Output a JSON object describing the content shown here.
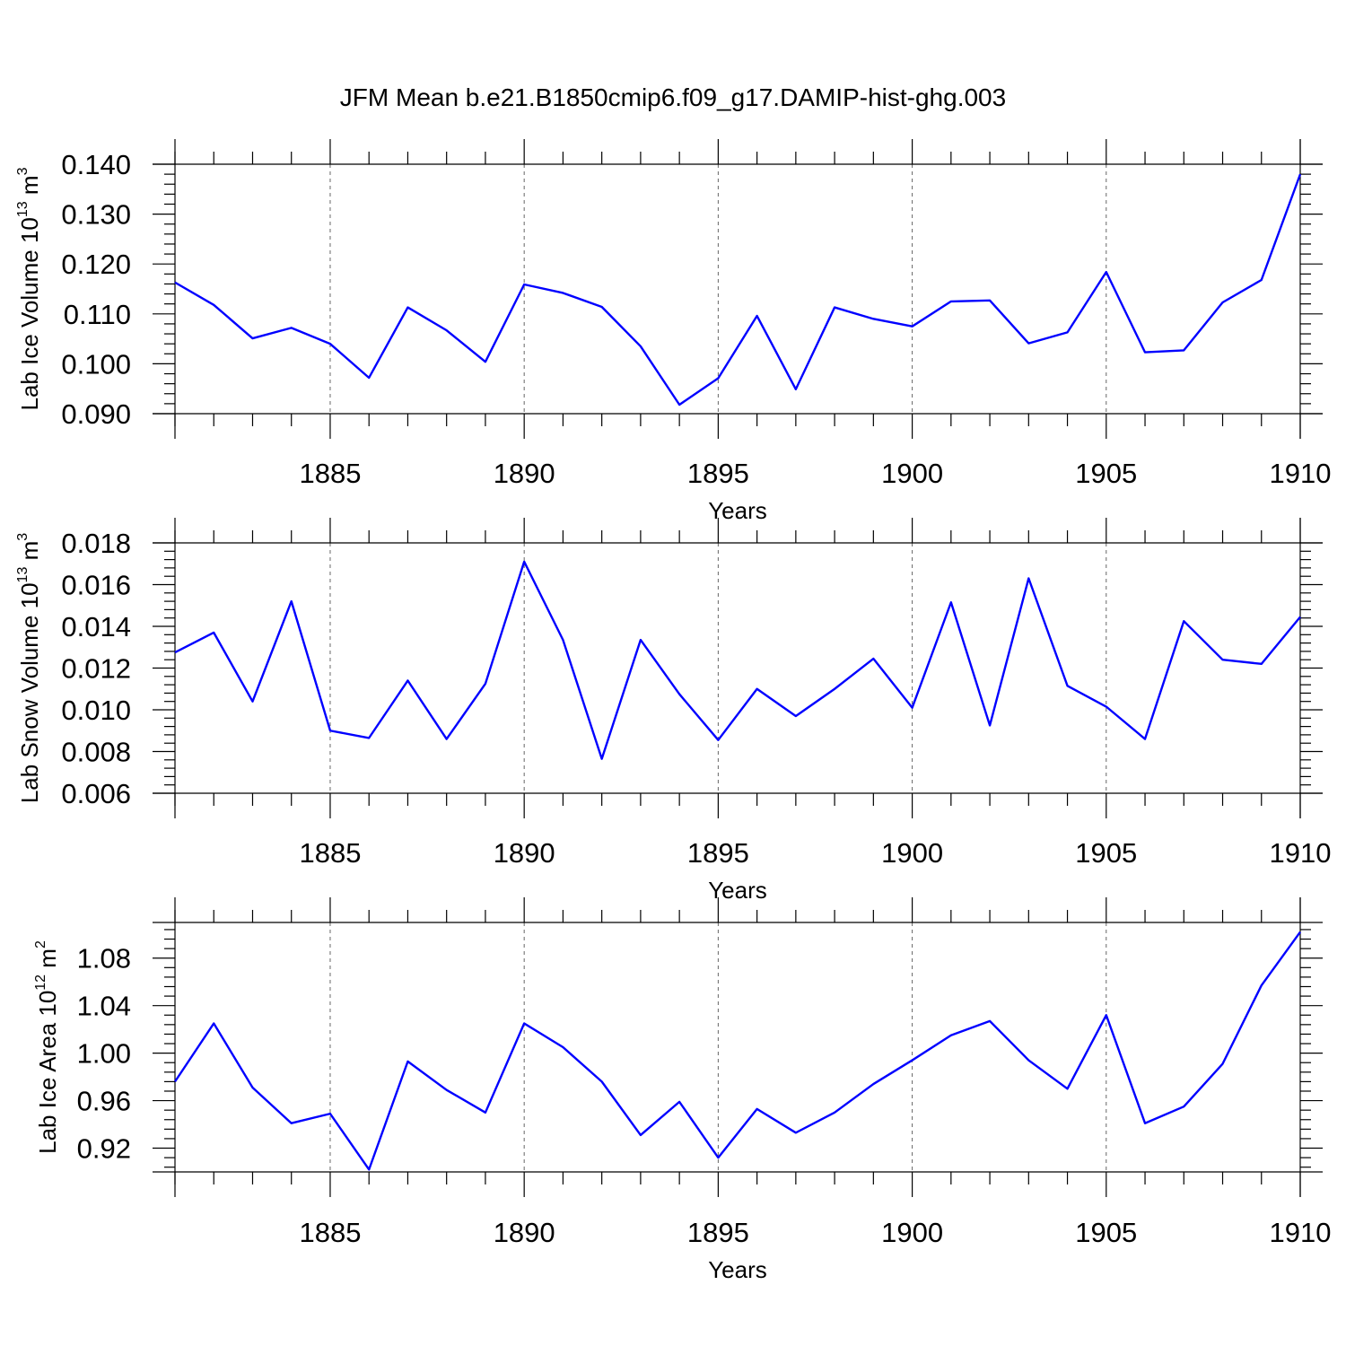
{
  "figure_title": "JFM Mean b.e21.B1850cmip6.f09_g17.DAMIP-hist-ghg.003",
  "chart_data": [
    {
      "type": "line",
      "title": "",
      "ylabel_main": "Lab Ice Volume 10",
      "ylabel_exp": "13",
      "ylabel_unit": " m",
      "ylabel_unit_exp": "3",
      "xlabel": "Years",
      "xlim": [
        1881,
        1910
      ],
      "ylim": [
        0.09,
        0.14
      ],
      "xticks": [
        1885,
        1890,
        1895,
        1900,
        1905,
        1910
      ],
      "xtick_labels": [
        "1885",
        "1890",
        "1895",
        "1900",
        "1905",
        "1910"
      ],
      "yticks": [
        0.09,
        0.1,
        0.11,
        0.12,
        0.13,
        0.14
      ],
      "ytick_labels": [
        "0.090",
        "0.100",
        "0.110",
        "0.120",
        "0.130",
        "0.140"
      ],
      "grid": "vertical dashed at major x ticks",
      "line_color": "#0000ff",
      "series": [
        {
          "name": "Lab Ice Volume",
          "x": [
            1881,
            1882,
            1883,
            1884,
            1885,
            1886,
            1887,
            1888,
            1889,
            1890,
            1891,
            1892,
            1893,
            1894,
            1895,
            1896,
            1897,
            1898,
            1899,
            1900,
            1901,
            1902,
            1903,
            1904,
            1905,
            1906,
            1907,
            1908,
            1909,
            1910
          ],
          "values": [
            0.1163,
            0.1118,
            0.1051,
            0.1072,
            0.104,
            0.0972,
            0.1113,
            0.1067,
            0.1004,
            0.1159,
            0.1142,
            0.1114,
            0.1035,
            0.0918,
            0.0971,
            0.1096,
            0.0949,
            0.1113,
            0.109,
            0.1075,
            0.1125,
            0.1127,
            0.1041,
            0.1063,
            0.1184,
            0.1023,
            0.1027,
            0.1123,
            0.1168,
            0.138
          ]
        }
      ]
    },
    {
      "type": "line",
      "title": "",
      "ylabel_main": "Lab Snow Volume 10",
      "ylabel_exp": "13",
      "ylabel_unit": " m",
      "ylabel_unit_exp": "3",
      "xlabel": "Years",
      "xlim": [
        1881,
        1910
      ],
      "ylim": [
        0.006,
        0.018
      ],
      "xticks": [
        1885,
        1890,
        1895,
        1900,
        1905,
        1910
      ],
      "xtick_labels": [
        "1885",
        "1890",
        "1895",
        "1900",
        "1905",
        "1910"
      ],
      "yticks": [
        0.006,
        0.008,
        0.01,
        0.012,
        0.014,
        0.016,
        0.018
      ],
      "ytick_labels": [
        "0.006",
        "0.008",
        "0.010",
        "0.012",
        "0.014",
        "0.016",
        "0.018"
      ],
      "grid": "vertical dashed at major x ticks",
      "line_color": "#0000ff",
      "series": [
        {
          "name": "Lab Snow Volume",
          "x": [
            1881,
            1882,
            1883,
            1884,
            1885,
            1886,
            1887,
            1888,
            1889,
            1890,
            1891,
            1892,
            1893,
            1894,
            1895,
            1896,
            1897,
            1898,
            1899,
            1900,
            1901,
            1902,
            1903,
            1904,
            1905,
            1906,
            1907,
            1908,
            1909,
            1910
          ],
          "values": [
            0.01275,
            0.0137,
            0.0104,
            0.0152,
            0.009,
            0.00865,
            0.0114,
            0.0086,
            0.01125,
            0.0171,
            0.01335,
            0.00765,
            0.01335,
            0.01075,
            0.00855,
            0.011,
            0.0097,
            0.011,
            0.01245,
            0.0101,
            0.01515,
            0.00925,
            0.0163,
            0.01115,
            0.01015,
            0.0086,
            0.01425,
            0.0124,
            0.0122,
            0.01445
          ]
        }
      ]
    },
    {
      "type": "line",
      "title": "",
      "ylabel_main": "Lab Ice Area 10",
      "ylabel_exp": "12",
      "ylabel_unit": " m",
      "ylabel_unit_exp": "2",
      "xlabel": "Years",
      "xlim": [
        1881,
        1910
      ],
      "ylim": [
        0.9,
        1.11
      ],
      "xticks": [
        1885,
        1890,
        1895,
        1900,
        1905,
        1910
      ],
      "xtick_labels": [
        "1885",
        "1890",
        "1895",
        "1900",
        "1905",
        "1910"
      ],
      "yticks": [
        0.92,
        0.96,
        1.0,
        1.04,
        1.08
      ],
      "ytick_labels": [
        "0.92",
        "0.96",
        "1.00",
        "1.04",
        "1.08"
      ],
      "grid": "vertical dashed at major x ticks",
      "line_color": "#0000ff",
      "series": [
        {
          "name": "Lab Ice Area",
          "x": [
            1881,
            1882,
            1883,
            1884,
            1885,
            1886,
            1887,
            1888,
            1889,
            1890,
            1891,
            1892,
            1893,
            1894,
            1895,
            1896,
            1897,
            1898,
            1899,
            1900,
            1901,
            1902,
            1903,
            1904,
            1905,
            1906,
            1907,
            1908,
            1909,
            1910
          ],
          "values": [
            0.976,
            1.025,
            0.971,
            0.941,
            0.949,
            0.902,
            0.993,
            0.969,
            0.95,
            1.025,
            1.005,
            0.976,
            0.931,
            0.959,
            0.912,
            0.953,
            0.933,
            0.95,
            0.974,
            0.994,
            1.015,
            1.027,
            0.994,
            0.97,
            1.032,
            0.941,
            0.955,
            0.991,
            1.057,
            1.102
          ]
        }
      ]
    }
  ]
}
